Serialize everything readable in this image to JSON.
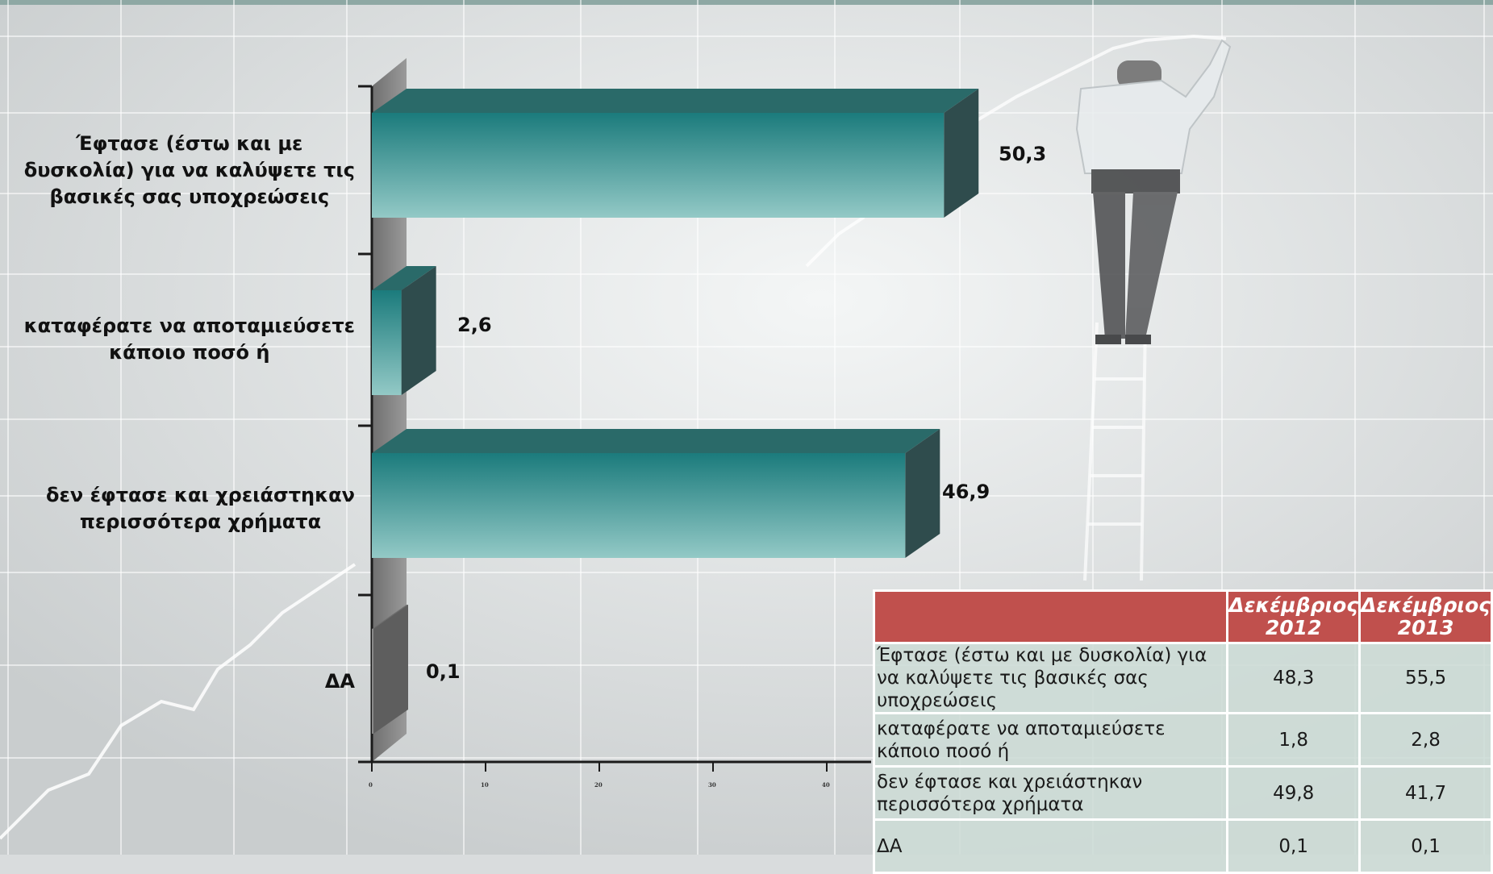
{
  "chart_data": {
    "type": "bar",
    "orientation": "horizontal",
    "style": "3d",
    "categories": [
      [
        "Έφτασε (έστω και με",
        "δυσκολία) για να καλύψετε τις",
        "βασικές σας υποχρεώσεις"
      ],
      [
        "καταφέρατε να αποταμιεύσετε",
        "κάποιο ποσό ή"
      ],
      [
        "δεν έφτασε και χρειάστηκαν",
        "περισσότερα χρήματα"
      ],
      [
        "ΔΑ"
      ]
    ],
    "values": [
      50.3,
      2.6,
      46.9,
      0.1
    ],
    "value_labels": [
      "50,3",
      "2,6",
      "46,9",
      "0,1"
    ],
    "x_ticks": [
      "0",
      "10",
      "20",
      "30",
      "40"
    ],
    "xlim": [
      0,
      40
    ],
    "grid": false,
    "bar_color": "#4fa3a3"
  },
  "table": {
    "headers": [
      "",
      "Δεκέμβριος 2012",
      "Δεκέμβριος 2013"
    ],
    "header_color": "#c0504d",
    "rows": [
      {
        "label": "Έφτασε (έστω και με δυσκολία) για να καλύψετε τις βασικές σας υποχρεώσεις",
        "v2012": "48,3",
        "v2013": "55,5"
      },
      {
        "label": "καταφέρατε να αποταμιεύσετε κάποιο ποσό ή",
        "v2012": "1,8",
        "v2013": "2,8"
      },
      {
        "label": "δεν έφτασε και χρειάστηκαν περισσότερα χρήματα",
        "v2012": "49,8",
        "v2013": "41,7"
      },
      {
        "label": "ΔΑ",
        "v2012": "0,1",
        "v2013": "0,1"
      }
    ]
  }
}
